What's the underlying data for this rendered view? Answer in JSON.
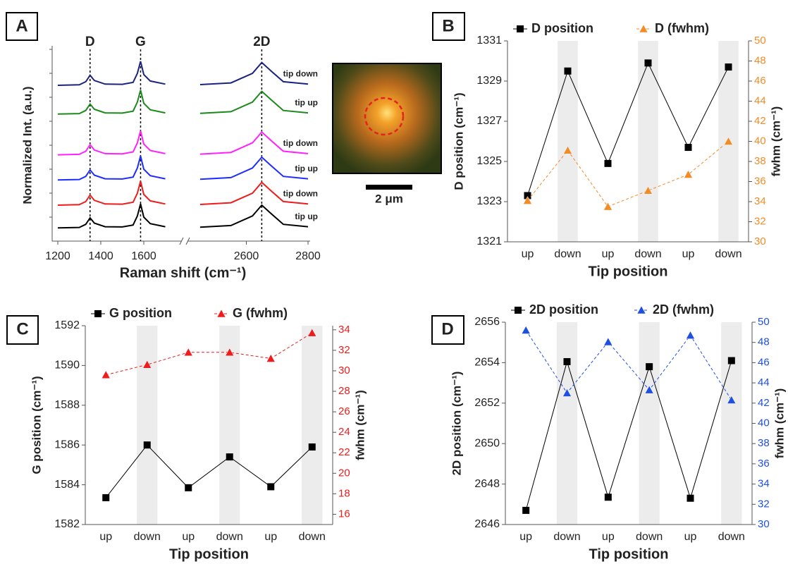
{
  "chart_data": [
    {
      "type": "spectra",
      "panel": "A",
      "xlabel": "Raman shift (cm⁻¹)",
      "ylabel": "Normalized Int. (a.u.)",
      "x": [
        1200,
        1300,
        1330,
        1350,
        1370,
        1420,
        1500,
        1550,
        1570,
        1585,
        1600,
        1630,
        1700,
        2000,
        2450,
        2550,
        2620,
        2650,
        2680,
        2720,
        2800
      ],
      "xlim": [
        1200,
        2800
      ],
      "xbreak": [
        1790,
        2400
      ],
      "xticks": [
        1200,
        1400,
        1600,
        2600,
        2800
      ],
      "ylim": [
        0,
        8
      ],
      "annotations": [
        {
          "text": "D",
          "x": 1350
        },
        {
          "text": "G",
          "x": 1585
        },
        {
          "text": "2D",
          "x": 2650
        }
      ],
      "series": [
        {
          "name": "tip down",
          "color": "#1a237e",
          "values": [
            6.5,
            6.52,
            6.65,
            6.92,
            6.7,
            6.55,
            6.54,
            6.62,
            7.0,
            7.5,
            6.95,
            6.68,
            6.55,
            null,
            6.53,
            6.6,
            7.0,
            7.45,
            7.1,
            6.65,
            6.55
          ]
        },
        {
          "name": "tip up",
          "color": "#1b8a1b",
          "values": [
            5.3,
            5.32,
            5.45,
            5.72,
            5.5,
            5.35,
            5.34,
            5.42,
            5.8,
            6.3,
            5.75,
            5.48,
            5.35,
            null,
            5.33,
            5.4,
            5.8,
            6.25,
            5.9,
            5.45,
            5.35
          ]
        },
        {
          "name": "tip down",
          "color": "#ff22ff",
          "values": [
            3.6,
            3.62,
            3.75,
            4.02,
            3.8,
            3.65,
            3.64,
            3.72,
            4.1,
            4.6,
            4.05,
            3.78,
            3.65,
            null,
            3.63,
            3.7,
            4.1,
            4.55,
            4.2,
            3.75,
            3.65
          ]
        },
        {
          "name": "tip up",
          "color": "#1f2cff",
          "values": [
            2.55,
            2.57,
            2.7,
            2.97,
            2.75,
            2.6,
            2.59,
            2.67,
            3.05,
            3.55,
            3.0,
            2.73,
            2.6,
            null,
            2.58,
            2.65,
            3.05,
            3.5,
            3.15,
            2.7,
            2.6
          ]
        },
        {
          "name": "tip down",
          "color": "#ee1c1c",
          "values": [
            1.5,
            1.52,
            1.65,
            1.92,
            1.7,
            1.55,
            1.54,
            1.62,
            2.0,
            2.5,
            1.95,
            1.68,
            1.55,
            null,
            1.53,
            1.6,
            2.0,
            2.45,
            2.1,
            1.65,
            1.55
          ]
        },
        {
          "name": "tip up",
          "color": "#000000",
          "values": [
            0.55,
            0.57,
            0.7,
            0.97,
            0.75,
            0.6,
            0.59,
            0.67,
            1.05,
            1.55,
            1.0,
            0.73,
            0.6,
            null,
            0.58,
            0.65,
            1.05,
            1.5,
            1.15,
            0.7,
            0.6
          ]
        }
      ]
    },
    {
      "type": "dual",
      "panel": "B",
      "xlabel": "Tip position",
      "ylabel": "D position (cm⁻¹)",
      "y2label": "fwhm (cm⁻¹)",
      "band_shading": true,
      "categories": [
        "up",
        "down",
        "up",
        "down",
        "up",
        "down"
      ],
      "ylim": [
        1321,
        1331
      ],
      "yticks": [
        1321,
        1323,
        1325,
        1327,
        1329,
        1331
      ],
      "y2lim": [
        30,
        50
      ],
      "y2ticks": [
        30,
        32,
        34,
        36,
        38,
        40,
        42,
        44,
        46,
        48,
        50
      ],
      "series": [
        {
          "name": "D position",
          "color": "#000000",
          "marker": "square",
          "line_style": "solid",
          "values": [
            1323.3,
            1329.5,
            1324.9,
            1329.9,
            1325.7,
            1329.7
          ]
        },
        {
          "name": "D (fwhm)",
          "color": "#f28c28",
          "marker": "triangle",
          "line_style": "dashed",
          "axis": "y2",
          "values": [
            34.1,
            39.1,
            33.5,
            35.1,
            36.7,
            40.0
          ]
        }
      ]
    },
    {
      "type": "dual",
      "panel": "C",
      "xlabel": "Tip position",
      "ylabel": "G position (cm⁻¹)",
      "y2label": "fwhm (cm⁻¹)",
      "band_shading": true,
      "categories": [
        "up",
        "down",
        "up",
        "down",
        "up",
        "down"
      ],
      "ylim": [
        1582,
        1592
      ],
      "yticks": [
        1582,
        1584,
        1586,
        1588,
        1590,
        1592
      ],
      "y2lim": [
        15,
        34.4
      ],
      "y2ticks": [
        16,
        18,
        20,
        22,
        24,
        26,
        28,
        30,
        32,
        34
      ],
      "series": [
        {
          "name": "G position",
          "color": "#000000",
          "marker": "square",
          "line_style": "solid",
          "values": [
            1583.35,
            1586.0,
            1583.85,
            1585.4,
            1583.9,
            1585.9
          ]
        },
        {
          "name": "G (fwhm)",
          "color": "#ee1c1c",
          "marker": "triangle",
          "line_style": "dashed",
          "axis": "y2",
          "values": [
            29.6,
            30.6,
            31.8,
            31.8,
            31.2,
            33.7
          ]
        }
      ]
    },
    {
      "type": "dual",
      "panel": "D",
      "xlabel": "Tip position",
      "ylabel": "2D position (cm⁻¹)",
      "y2label": "fwhm (cm⁻¹)",
      "band_shading": true,
      "categories": [
        "up",
        "down",
        "up",
        "down",
        "up",
        "down"
      ],
      "ylim": [
        2646,
        2656
      ],
      "yticks": [
        2646,
        2648,
        2650,
        2652,
        2654,
        2656
      ],
      "y2lim": [
        30,
        50
      ],
      "y2ticks": [
        30,
        32,
        34,
        36,
        38,
        40,
        42,
        44,
        46,
        48,
        50
      ],
      "series": [
        {
          "name": "2D position",
          "color": "#000000",
          "marker": "square",
          "line_style": "solid",
          "values": [
            2646.7,
            2654.05,
            2647.35,
            2653.8,
            2647.3,
            2654.1
          ]
        },
        {
          "name": "2D (fwhm)",
          "color": "#1f4fe0",
          "marker": "triangle",
          "line_style": "dashed",
          "axis": "y2",
          "values": [
            49.2,
            43.0,
            48.05,
            43.3,
            48.7,
            42.3
          ]
        }
      ]
    }
  ],
  "image": {
    "scale_bar": "2 μm"
  }
}
